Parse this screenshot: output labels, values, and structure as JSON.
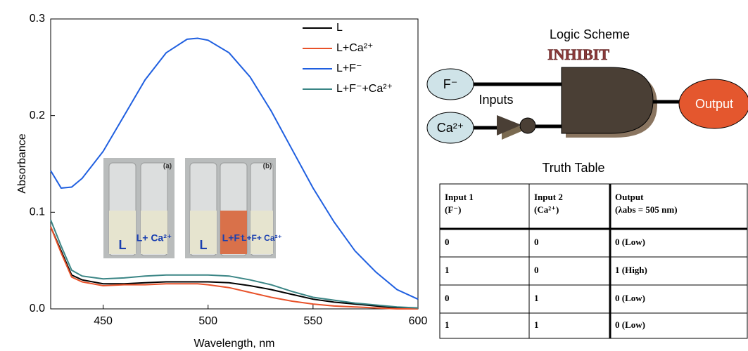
{
  "chart_data": {
    "type": "line",
    "x_label": "Wavelength, nm",
    "y_label": "Absorbance",
    "x": [
      425,
      430,
      435,
      440,
      450,
      460,
      470,
      480,
      490,
      495,
      500,
      510,
      520,
      530,
      540,
      550,
      560,
      570,
      580,
      590,
      600
    ],
    "series": [
      {
        "name": "L",
        "color": "#000000",
        "values": [
          0.085,
          0.06,
          0.035,
          0.03,
          0.026,
          0.026,
          0.027,
          0.028,
          0.028,
          0.028,
          0.028,
          0.027,
          0.024,
          0.02,
          0.015,
          0.01,
          0.007,
          0.005,
          0.003,
          0.001,
          0
        ]
      },
      {
        "name": "L+Ca²⁺",
        "color": "#e8522a",
        "values": [
          0.085,
          0.058,
          0.033,
          0.028,
          0.024,
          0.025,
          0.025,
          0.026,
          0.026,
          0.026,
          0.025,
          0.022,
          0.017,
          0.012,
          0.008,
          0.005,
          0.003,
          0.002,
          0.001,
          0,
          0
        ]
      },
      {
        "name": "L+F⁻",
        "color": "#1f5fe0",
        "values": [
          0.143,
          0.125,
          0.126,
          0.135,
          0.163,
          0.2,
          0.237,
          0.265,
          0.279,
          0.28,
          0.278,
          0.265,
          0.24,
          0.205,
          0.165,
          0.125,
          0.09,
          0.06,
          0.038,
          0.02,
          0.01
        ]
      },
      {
        "name": "L+F⁻+Ca²⁺",
        "color": "#3a8585",
        "values": [
          0.092,
          0.065,
          0.04,
          0.034,
          0.031,
          0.032,
          0.034,
          0.035,
          0.035,
          0.035,
          0.035,
          0.034,
          0.03,
          0.025,
          0.018,
          0.012,
          0.009,
          0.006,
          0.004,
          0.002,
          0.001
        ]
      }
    ],
    "xlim": [
      425,
      600
    ],
    "xticks": [
      450,
      500,
      550,
      600
    ],
    "ylim": [
      0,
      0.3
    ],
    "yticks": [
      {
        "value": 0,
        "label": "0.0"
      },
      0.1,
      0.2,
      0.3
    ],
    "legend": "upper right",
    "annotations": [
      "(a)",
      "L",
      "L+ Ca²⁺",
      "(b)",
      "L",
      "L+F⁻",
      "L+F+ Ca²⁺"
    ]
  },
  "logic_scheme": {
    "title": "Logic Scheme",
    "gate": "INHIBIT",
    "input_1": "F⁻",
    "input_2": "Ca²⁺",
    "inputs_label": "Inputs",
    "output": "Output"
  },
  "truth_table": {
    "title": "Truth Table",
    "header": [
      [
        "Input 1",
        "(F⁻)"
      ],
      [
        "Input 2",
        "(Ca²⁺)"
      ],
      [
        "Output",
        "(λabs = 505 nm)"
      ]
    ],
    "rows": [
      [
        "0",
        "0",
        "0 (Low)"
      ],
      [
        "1",
        "0",
        "1 (High)"
      ],
      [
        "0",
        "1",
        "0 (Low)"
      ],
      [
        "1",
        "1",
        "0 (Low)"
      ]
    ]
  }
}
